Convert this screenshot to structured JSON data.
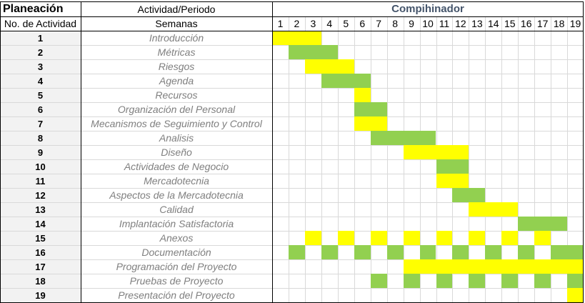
{
  "header": {
    "title": "Planeación",
    "activity_period": "Actividad/Periodo",
    "project_name": "Compihinador",
    "activity_number_label": "No. de Actividad",
    "weeks_label": "Semanas"
  },
  "weeks": [
    "1",
    "2",
    "3",
    "4",
    "5",
    "6",
    "7",
    "8",
    "9",
    "10",
    "11",
    "12",
    "13",
    "14",
    "15",
    "16",
    "17",
    "18",
    "19"
  ],
  "activities": [
    {
      "num": "1",
      "name": "Introducción"
    },
    {
      "num": "2",
      "name": "Métricas"
    },
    {
      "num": "3",
      "name": "Riesgos"
    },
    {
      "num": "4",
      "name": "Agenda"
    },
    {
      "num": "5",
      "name": "Recursos"
    },
    {
      "num": "6",
      "name": "Organización del Personal"
    },
    {
      "num": "7",
      "name": "Mecanismos de Seguimiento y Control"
    },
    {
      "num": "8",
      "name": "Analisis"
    },
    {
      "num": "9",
      "name": "Diseño"
    },
    {
      "num": "10",
      "name": "Actividades de Negocio"
    },
    {
      "num": "11",
      "name": "Mercadotecnia"
    },
    {
      "num": "12",
      "name": "Aspectos de la Mercadotecnia"
    },
    {
      "num": "13",
      "name": "Calidad"
    },
    {
      "num": "14",
      "name": "Implantación Satisfactoria"
    },
    {
      "num": "15",
      "name": "Anexos"
    },
    {
      "num": "16",
      "name": "Documentación"
    },
    {
      "num": "17",
      "name": "Programación del Proyecto"
    },
    {
      "num": "18",
      "name": "Pruebas de Proyecto"
    },
    {
      "num": "19",
      "name": "Presentación del Proyecto"
    }
  ],
  "colors": {
    "yellow": "#FFFF00",
    "green": "#92D050"
  },
  "schedule": [
    {
      "row": 1,
      "segments": [
        {
          "color": "yellow",
          "start": 1,
          "end": 3
        }
      ]
    },
    {
      "row": 2,
      "segments": [
        {
          "color": "green",
          "start": 2,
          "end": 4
        }
      ]
    },
    {
      "row": 3,
      "segments": [
        {
          "color": "yellow",
          "start": 3,
          "end": 5
        }
      ]
    },
    {
      "row": 4,
      "segments": [
        {
          "color": "green",
          "start": 4,
          "end": 6
        }
      ]
    },
    {
      "row": 5,
      "segments": [
        {
          "color": "yellow",
          "start": 6,
          "end": 6
        }
      ]
    },
    {
      "row": 6,
      "segments": [
        {
          "color": "green",
          "start": 6,
          "end": 7
        }
      ]
    },
    {
      "row": 7,
      "segments": [
        {
          "color": "yellow",
          "start": 6,
          "end": 7
        }
      ]
    },
    {
      "row": 8,
      "segments": [
        {
          "color": "green",
          "start": 7,
          "end": 10
        }
      ]
    },
    {
      "row": 9,
      "segments": [
        {
          "color": "yellow",
          "start": 9,
          "end": 12
        }
      ]
    },
    {
      "row": 10,
      "segments": [
        {
          "color": "green",
          "start": 11,
          "end": 12
        }
      ]
    },
    {
      "row": 11,
      "segments": [
        {
          "color": "yellow",
          "start": 11,
          "end": 12
        }
      ]
    },
    {
      "row": 12,
      "segments": [
        {
          "color": "green",
          "start": 12,
          "end": 13
        }
      ]
    },
    {
      "row": 13,
      "segments": [
        {
          "color": "yellow",
          "start": 13,
          "end": 15
        }
      ]
    },
    {
      "row": 14,
      "segments": [
        {
          "color": "green",
          "start": 16,
          "end": 18
        }
      ]
    },
    {
      "row": 15,
      "segments": [
        {
          "color": "yellow",
          "start": 3,
          "end": 3
        },
        {
          "color": "yellow",
          "start": 5,
          "end": 5
        },
        {
          "color": "yellow",
          "start": 7,
          "end": 7
        },
        {
          "color": "yellow",
          "start": 9,
          "end": 9
        },
        {
          "color": "yellow",
          "start": 11,
          "end": 11
        },
        {
          "color": "yellow",
          "start": 13,
          "end": 13
        },
        {
          "color": "yellow",
          "start": 15,
          "end": 15
        },
        {
          "color": "yellow",
          "start": 17,
          "end": 17
        }
      ]
    },
    {
      "row": 16,
      "segments": [
        {
          "color": "green",
          "start": 2,
          "end": 2
        },
        {
          "color": "green",
          "start": 4,
          "end": 4
        },
        {
          "color": "green",
          "start": 6,
          "end": 6
        },
        {
          "color": "green",
          "start": 8,
          "end": 8
        },
        {
          "color": "green",
          "start": 10,
          "end": 10
        },
        {
          "color": "green",
          "start": 12,
          "end": 12
        },
        {
          "color": "green",
          "start": 14,
          "end": 14
        },
        {
          "color": "green",
          "start": 16,
          "end": 16
        },
        {
          "color": "green",
          "start": 18,
          "end": 19
        }
      ]
    },
    {
      "row": 17,
      "segments": [
        {
          "color": "yellow",
          "start": 9,
          "end": 19
        }
      ]
    },
    {
      "row": 18,
      "segments": [
        {
          "color": "green",
          "start": 7,
          "end": 7
        },
        {
          "color": "green",
          "start": 9,
          "end": 9
        },
        {
          "color": "green",
          "start": 11,
          "end": 11
        },
        {
          "color": "green",
          "start": 13,
          "end": 13
        },
        {
          "color": "green",
          "start": 15,
          "end": 15
        },
        {
          "color": "green",
          "start": 17,
          "end": 17
        },
        {
          "color": "green",
          "start": 19,
          "end": 19
        }
      ]
    },
    {
      "row": 19,
      "segments": [
        {
          "color": "yellow",
          "start": 19,
          "end": 19
        }
      ]
    }
  ]
}
